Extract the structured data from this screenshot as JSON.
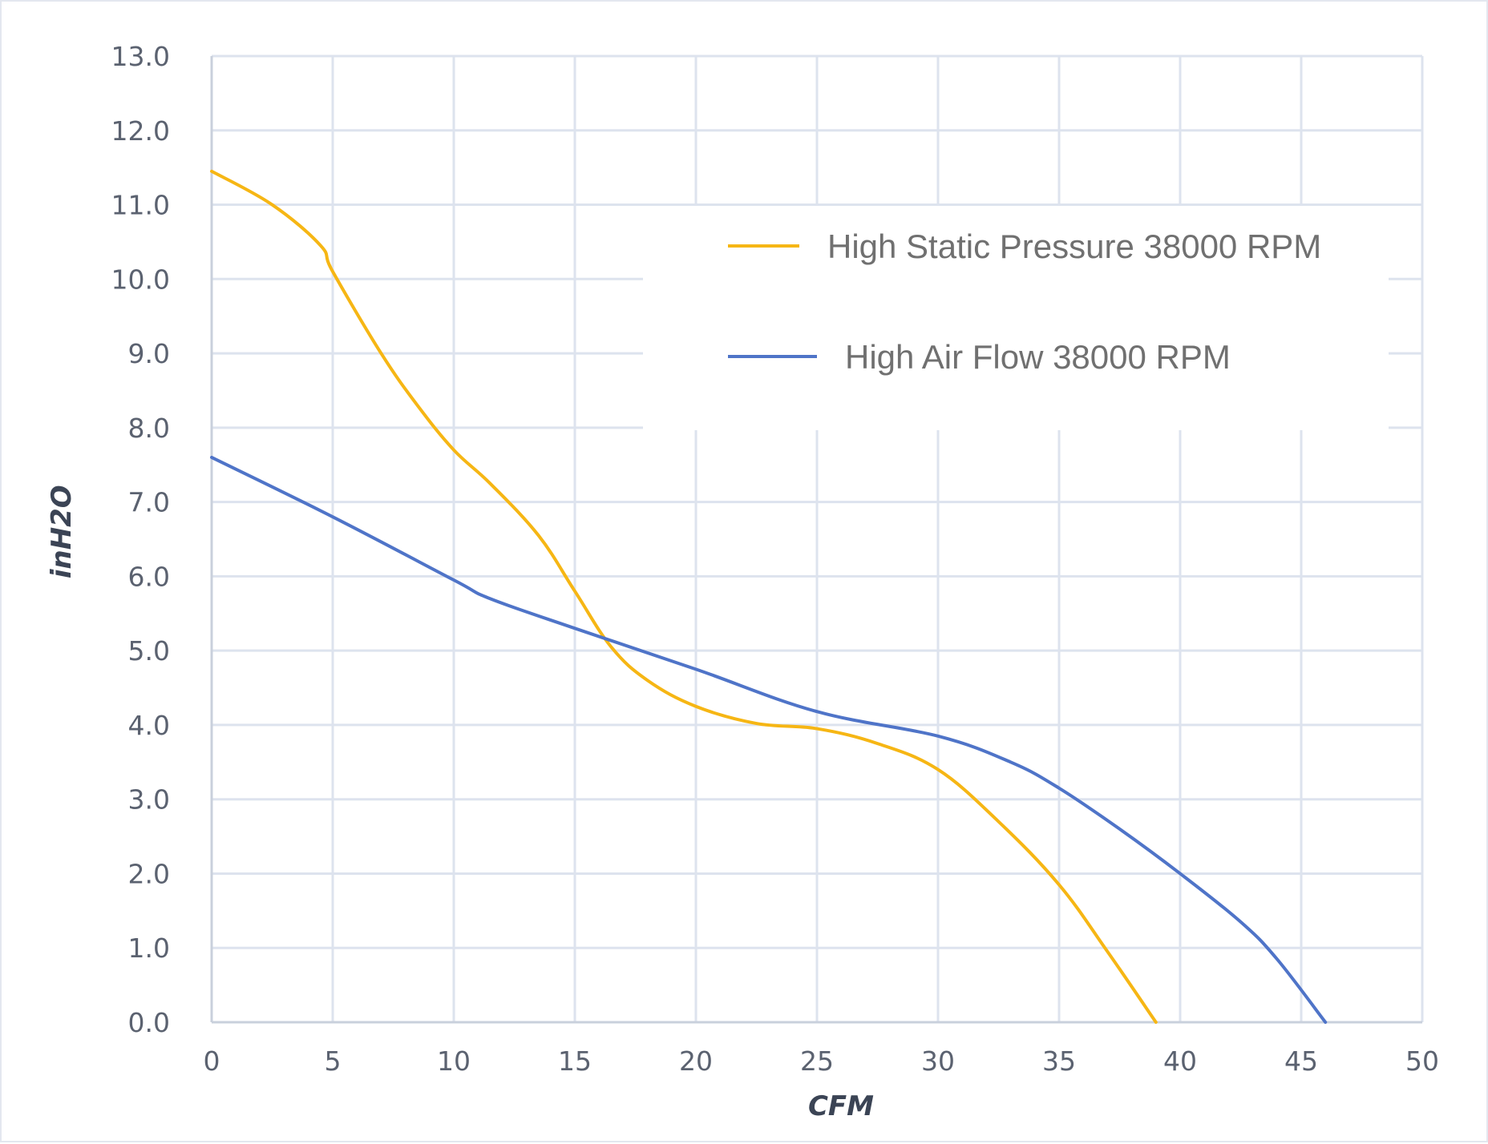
{
  "chart_data": {
    "type": "line",
    "title": "",
    "xlabel": "CFM",
    "ylabel": "inH2O",
    "xlim": [
      0,
      50
    ],
    "ylim": [
      0,
      13
    ],
    "x_ticks": [
      "0",
      "5",
      "10",
      "15",
      "20",
      "25",
      "30",
      "35",
      "40",
      "45",
      "50"
    ],
    "y_ticks": [
      "0.0",
      "1.0",
      "2.0",
      "3.0",
      "4.0",
      "5.0",
      "6.0",
      "7.0",
      "8.0",
      "9.0",
      "10.0",
      "11.0",
      "12.0",
      "13.0"
    ],
    "grid": true,
    "legend_position": "top-right",
    "series": [
      {
        "name": "High Static Pressure 38000 RPM",
        "color": "#f6b614",
        "points": [
          [
            0,
            11.45
          ],
          [
            2.5,
            11.0
          ],
          [
            4.5,
            10.45
          ],
          [
            5,
            10.1
          ],
          [
            7,
            9.0
          ],
          [
            8.5,
            8.3
          ],
          [
            10,
            7.7
          ],
          [
            11.5,
            7.25
          ],
          [
            13.5,
            6.55
          ],
          [
            15,
            5.8
          ],
          [
            16.5,
            5.05
          ],
          [
            18,
            4.6
          ],
          [
            20,
            4.25
          ],
          [
            22.5,
            4.02
          ],
          [
            25,
            3.95
          ],
          [
            27.5,
            3.75
          ],
          [
            30,
            3.4
          ],
          [
            32.5,
            2.7
          ],
          [
            35,
            1.85
          ],
          [
            37,
            0.95
          ],
          [
            39,
            0.0
          ]
        ]
      },
      {
        "name": "High Air Flow 38000 RPM",
        "color": "#4f74c8",
        "points": [
          [
            0,
            7.6
          ],
          [
            5,
            6.8
          ],
          [
            10,
            5.95
          ],
          [
            11.5,
            5.7
          ],
          [
            15,
            5.3
          ],
          [
            20,
            4.75
          ],
          [
            25,
            4.18
          ],
          [
            30,
            3.85
          ],
          [
            33,
            3.5
          ],
          [
            35,
            3.15
          ],
          [
            37.5,
            2.6
          ],
          [
            40,
            2.0
          ],
          [
            42.5,
            1.35
          ],
          [
            44,
            0.85
          ],
          [
            46,
            0.0
          ]
        ]
      }
    ]
  }
}
